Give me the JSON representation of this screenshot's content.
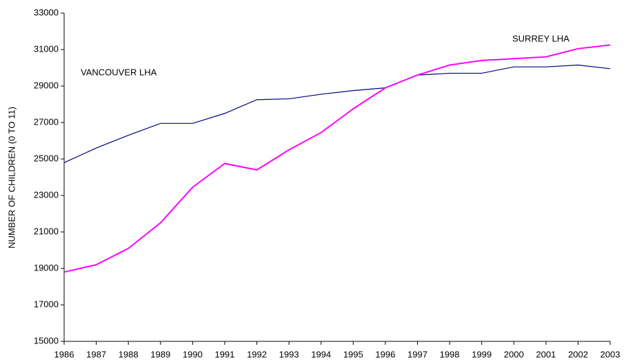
{
  "chart_data": {
    "type": "line",
    "y_label": "NUMBER OF CHILDREN (0 TO 11)",
    "categories": [
      "1986",
      "1987",
      "1988",
      "1989",
      "1990",
      "1991",
      "1992",
      "1993",
      "1994",
      "1995",
      "1996",
      "1997",
      "1998",
      "1999",
      "2000",
      "2001",
      "2002",
      "2003"
    ],
    "series": [
      {
        "name": "VANCOUVER LHA",
        "color": "#000080",
        "values": [
          24800,
          25600,
          26300,
          26950,
          26950,
          27500,
          28250,
          28300,
          28550,
          28750,
          28900,
          29600,
          29700,
          29700,
          30050,
          30050,
          30150,
          29950
        ]
      },
      {
        "name": "SURREY LHA",
        "color": "#ff00ff",
        "values": [
          18800,
          19200,
          20100,
          21500,
          23450,
          24750,
          24400,
          25500,
          26450,
          27750,
          28900,
          29600,
          30150,
          30400,
          30500,
          30600,
          31050,
          31250
        ]
      }
    ],
    "ylim": [
      15000,
      33000
    ],
    "yticks": [
      15000,
      17000,
      19000,
      21000,
      23000,
      25000,
      27000,
      29000,
      31000,
      33000
    ],
    "grid": false
  }
}
